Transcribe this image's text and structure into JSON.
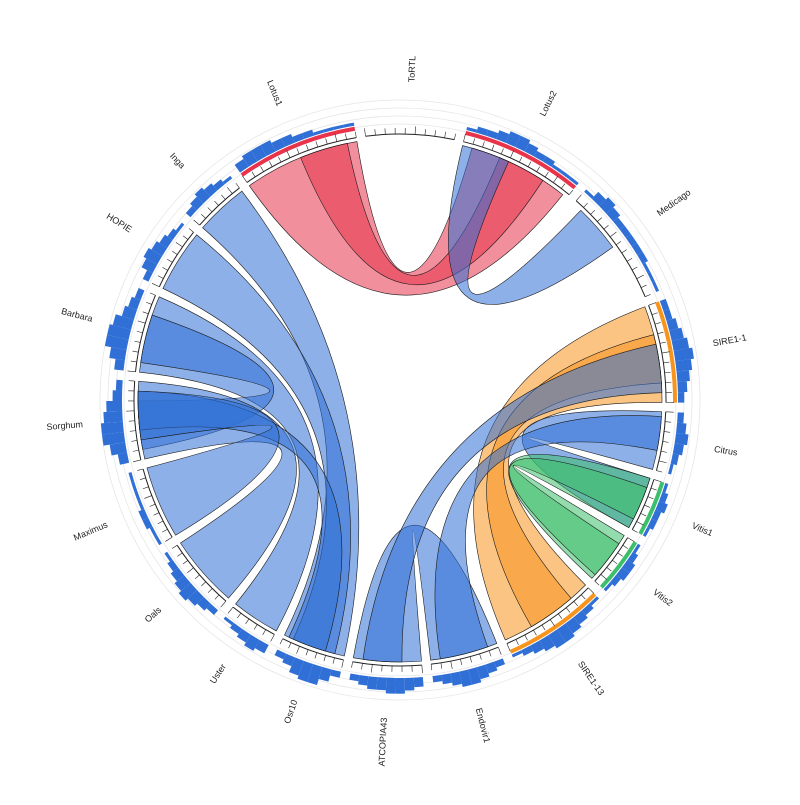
{
  "chart_data": {
    "type": "chord",
    "title": "",
    "colors": {
      "red": "#e8334a",
      "blue": "#2f6fd6",
      "orange": "#f7941d",
      "green": "#3cbf6a",
      "ring": "#e6e6e6",
      "outline": "#222222"
    },
    "segments": [
      {
        "name": "ToRTL",
        "size": 90,
        "color": "blue",
        "histogram": []
      },
      {
        "name": "Lotus2",
        "size": 120,
        "color": "red",
        "histogram": [
          1,
          2,
          2,
          3,
          4,
          4,
          3,
          2,
          2,
          1,
          1,
          1
        ]
      },
      {
        "name": "Medicago",
        "size": 120,
        "color": "blue",
        "histogram": [
          1,
          3,
          4,
          3,
          2,
          2,
          2,
          2,
          2,
          1,
          1,
          1
        ]
      },
      {
        "name": "SIRE1-1",
        "size": 100,
        "color": "orange",
        "histogram": [
          2,
          2,
          3,
          4,
          5,
          6,
          5,
          4,
          3,
          2
        ]
      },
      {
        "name": "Citrus",
        "size": 60,
        "color": "blue",
        "histogram": [
          2,
          3,
          4,
          3,
          2,
          1
        ]
      },
      {
        "name": "Vitis1",
        "size": 55,
        "color": "green",
        "histogram": [
          1,
          2,
          3,
          2,
          2,
          1
        ]
      },
      {
        "name": "Vitis2",
        "size": 55,
        "color": "green",
        "histogram": [
          1,
          2,
          3,
          3,
          2,
          1
        ]
      },
      {
        "name": "SIRE1-13",
        "size": 100,
        "color": "orange",
        "histogram": [
          1,
          2,
          3,
          4,
          5,
          5,
          4,
          3,
          2,
          1
        ]
      },
      {
        "name": "Endovir1",
        "size": 70,
        "color": "blue",
        "histogram": [
          2,
          3,
          4,
          5,
          5,
          4,
          3,
          2
        ]
      },
      {
        "name": "ATCOPIA43",
        "size": 70,
        "color": "blue",
        "histogram": [
          3,
          4,
          5,
          5,
          4,
          4,
          3,
          2
        ]
      },
      {
        "name": "Osr10",
        "size": 65,
        "color": "blue",
        "histogram": [
          2,
          4,
          6,
          6,
          5,
          3,
          2
        ]
      },
      {
        "name": "Uster",
        "size": 50,
        "color": "blue",
        "histogram": [
          3,
          4,
          3,
          2,
          1
        ]
      },
      {
        "name": "Oals",
        "size": 75,
        "color": "blue",
        "histogram": [
          2,
          3,
          4,
          5,
          4,
          3,
          2,
          1
        ]
      },
      {
        "name": "Maximus",
        "size": 75,
        "color": "blue",
        "histogram": [
          1,
          1,
          2,
          2,
          1,
          1,
          1,
          1
        ]
      },
      {
        "name": "Sorghum",
        "size": 80,
        "color": "blue",
        "histogram": [
          3,
          5,
          7,
          7,
          6,
          5,
          3,
          2
        ]
      },
      {
        "name": "Barbara",
        "size": 80,
        "color": "blue",
        "histogram": [
          3,
          5,
          7,
          7,
          6,
          4,
          3,
          2
        ]
      },
      {
        "name": "HOPIE",
        "size": 65,
        "color": "blue",
        "histogram": [
          2,
          4,
          5,
          4,
          3,
          2,
          1
        ]
      },
      {
        "name": "Inga",
        "size": 55,
        "color": "blue",
        "histogram": [
          2,
          3,
          4,
          3,
          2,
          1
        ]
      },
      {
        "name": "Lotus1",
        "size": 120,
        "color": "red",
        "histogram": [
          3,
          4,
          4,
          4,
          3,
          3,
          2,
          2,
          1,
          1,
          1,
          1
        ]
      }
    ],
    "links": [
      {
        "source": "Lotus1",
        "source_range": [
          0,
          120
        ],
        "target": "Lotus2",
        "target_range": [
          10,
          115
        ],
        "color": "red"
      },
      {
        "source": "Lotus1",
        "source_range": [
          60,
          110
        ],
        "target": "Lotus2",
        "target_range": [
          40,
          90
        ],
        "color": "red"
      },
      {
        "source": "Lotus2",
        "source_range": [
          0,
          50
        ],
        "target": "Medicago",
        "target_range": [
          10,
          60
        ],
        "color": "blue"
      },
      {
        "source": "SIRE1-1",
        "source_range": [
          0,
          100
        ],
        "target": "SIRE1-13",
        "target_range": [
          0,
          100
        ],
        "color": "orange"
      },
      {
        "source": "SIRE1-1",
        "source_range": [
          30,
          80
        ],
        "target": "SIRE1-13",
        "target_range": [
          20,
          70
        ],
        "color": "orange"
      },
      {
        "source": "Citrus",
        "source_range": [
          0,
          60
        ],
        "target": "Vitis1",
        "target_range": [
          0,
          55
        ],
        "color": "blue"
      },
      {
        "source": "Vitis1",
        "source_range": [
          0,
          55
        ],
        "target": "Vitis2",
        "target_range": [
          0,
          55
        ],
        "color": "green"
      },
      {
        "source": "Vitis2",
        "source_range": [
          10,
          50
        ],
        "target": "Vitis1",
        "target_range": [
          10,
          45
        ],
        "color": "green"
      },
      {
        "source": "ATCOPIA43",
        "source_range": [
          0,
          70
        ],
        "target": "Endovir1",
        "target_range": [
          0,
          70
        ],
        "color": "blue"
      },
      {
        "source": "Endovir1",
        "source_range": [
          10,
          60
        ],
        "target": "Citrus",
        "target_range": [
          5,
          40
        ],
        "color": "blue"
      },
      {
        "source": "ATCOPIA43",
        "source_range": [
          20,
          60
        ],
        "target": "SIRE1-1",
        "target_range": [
          40,
          90
        ],
        "color": "blue"
      },
      {
        "source": "Inga",
        "source_range": [
          0,
          55
        ],
        "target": "Osr10",
        "target_range": [
          0,
          65
        ],
        "color": "blue"
      },
      {
        "source": "HOPIE",
        "source_range": [
          0,
          65
        ],
        "target": "Osr10",
        "target_range": [
          10,
          55
        ],
        "color": "blue"
      },
      {
        "source": "Barbara",
        "source_range": [
          0,
          80
        ],
        "target": "Uster",
        "target_range": [
          0,
          50
        ],
        "color": "blue"
      },
      {
        "source": "Barbara",
        "source_range": [
          10,
          60
        ],
        "target": "Sorghum",
        "target_range": [
          10,
          60
        ],
        "color": "blue"
      },
      {
        "source": "Sorghum",
        "source_range": [
          0,
          80
        ],
        "target": "Oals",
        "target_range": [
          0,
          75
        ],
        "color": "blue"
      },
      {
        "source": "Sorghum",
        "source_range": [
          30,
          70
        ],
        "target": "Osr10",
        "target_range": [
          20,
          60
        ],
        "color": "blue"
      },
      {
        "source": "Maximus",
        "source_range": [
          0,
          75
        ],
        "target": "Sorghum",
        "target_range": [
          20,
          70
        ],
        "color": "blue"
      }
    ]
  }
}
